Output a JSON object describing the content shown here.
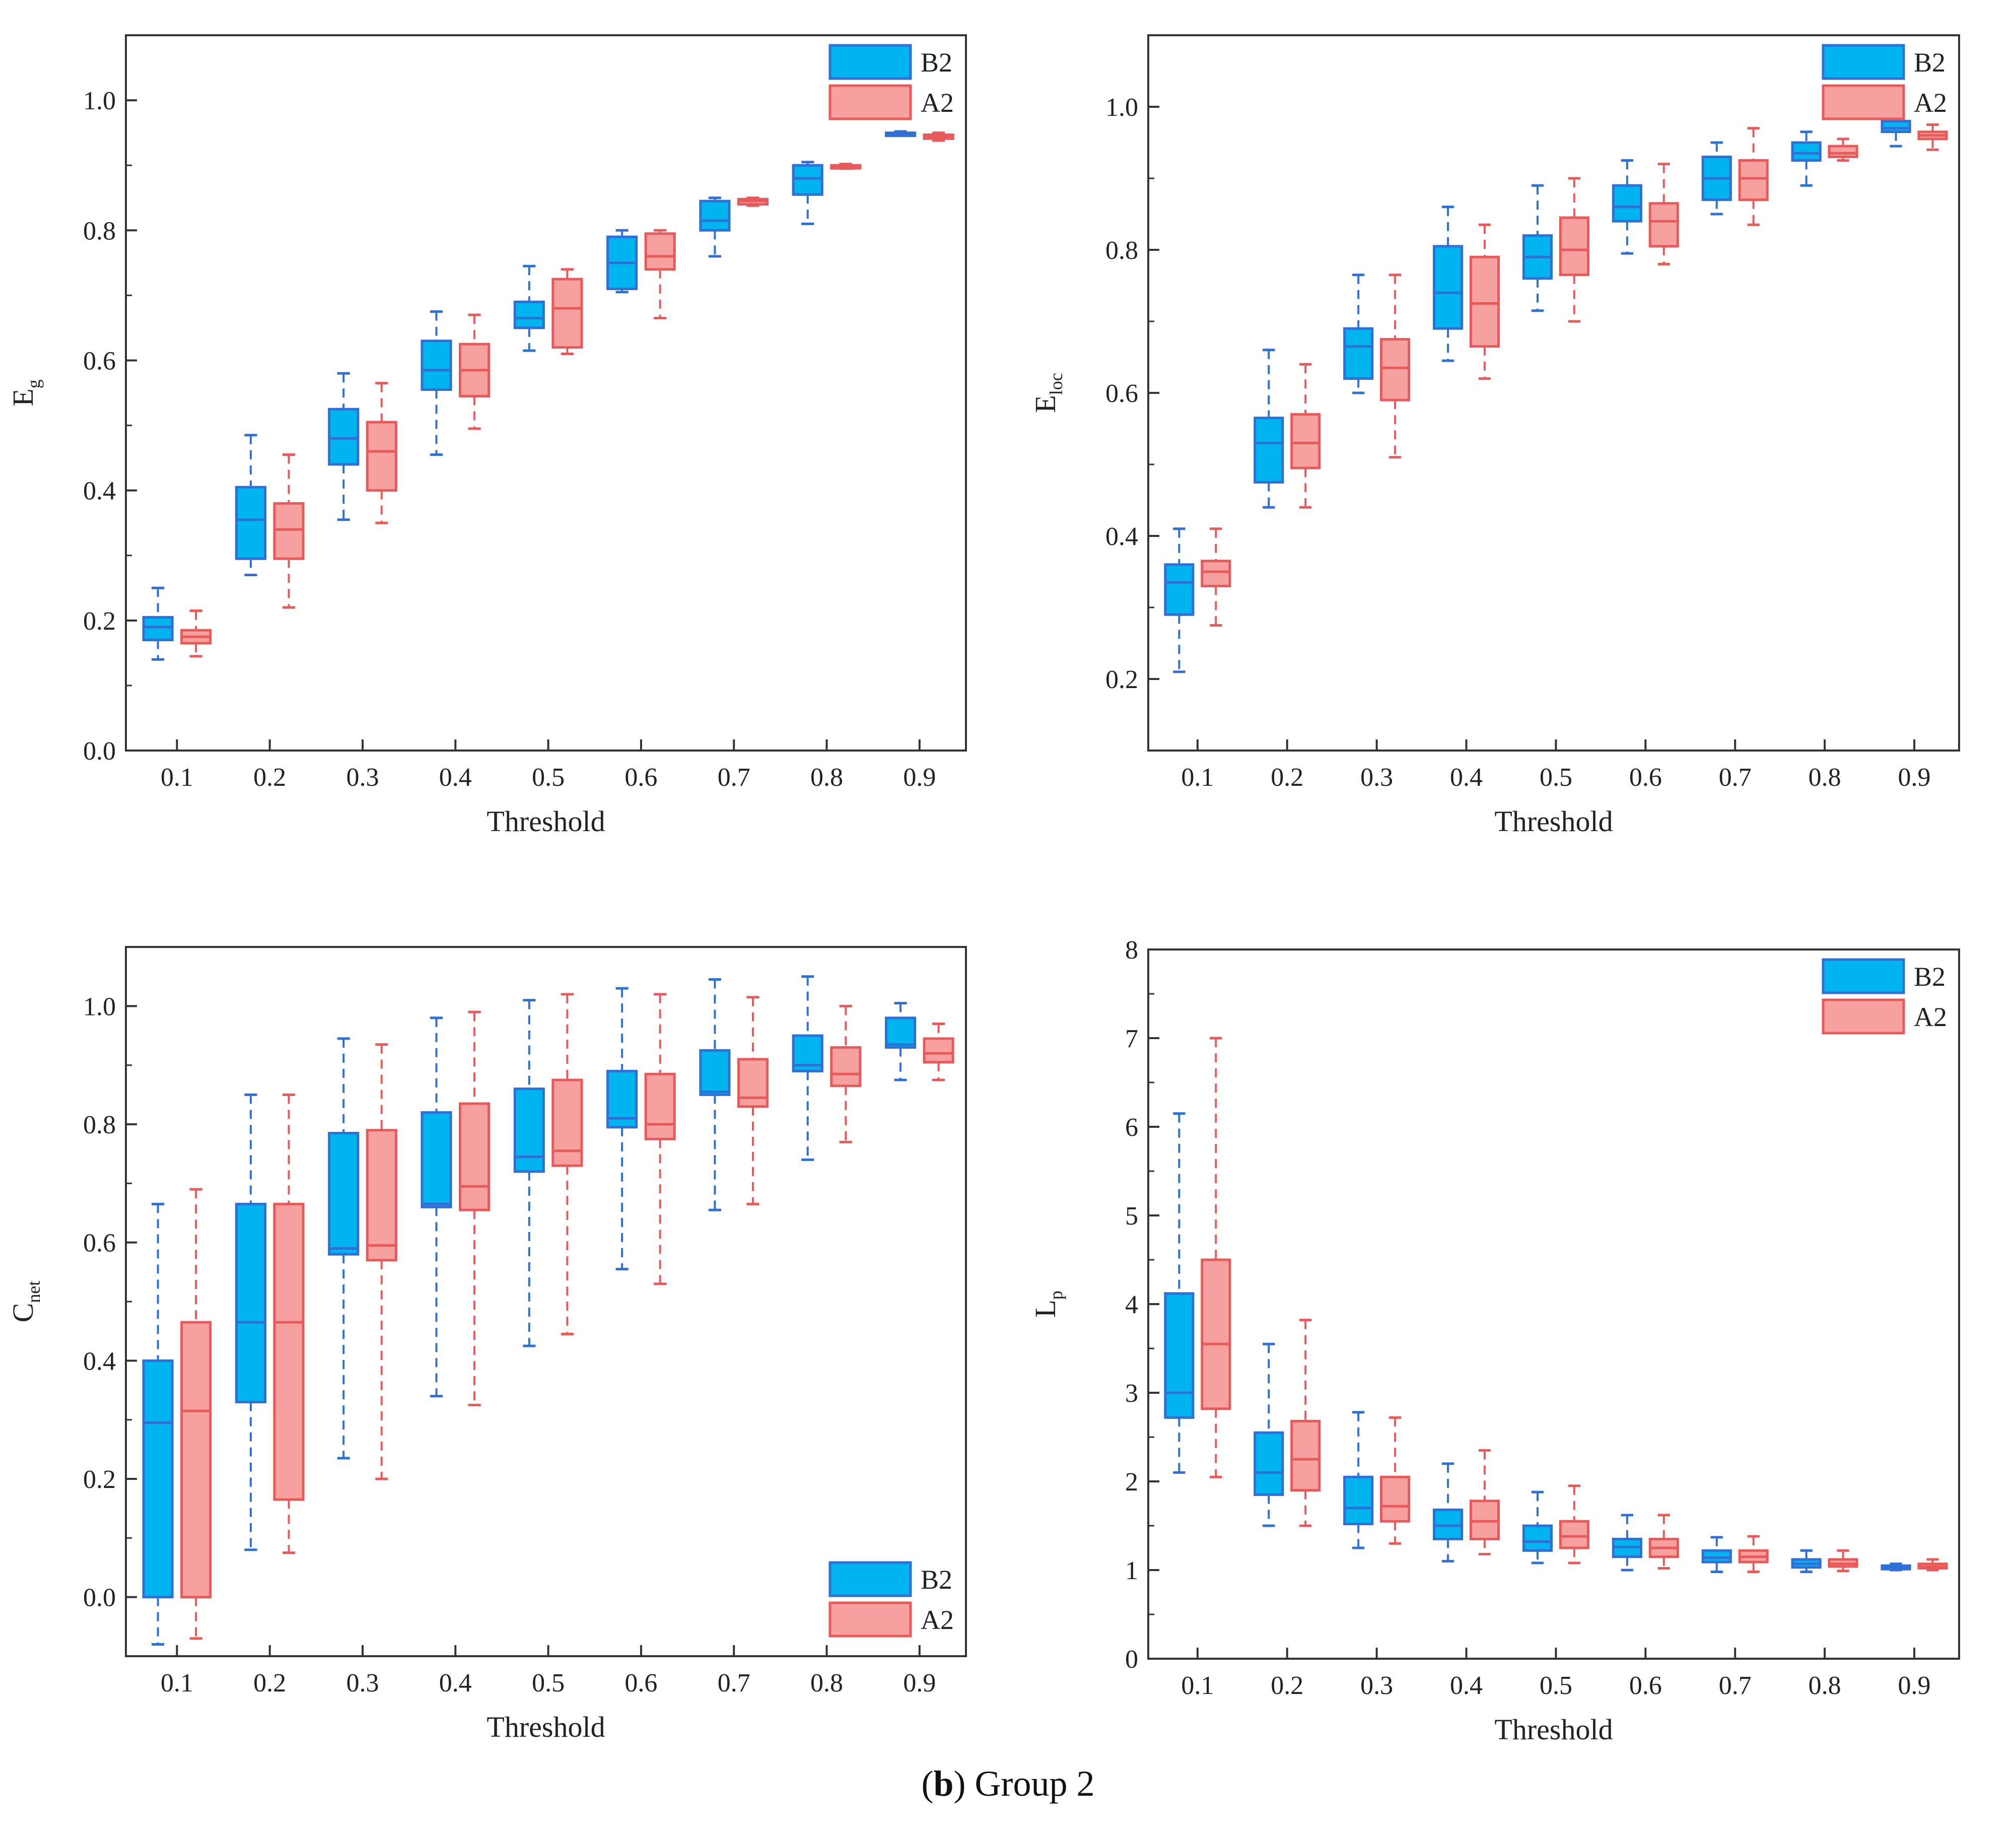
{
  "caption": {
    "open": "(",
    "letter": "b",
    "close": ")",
    "text": " Group 2"
  },
  "colors": {
    "B2_fill": "#00b4f0",
    "B2_stroke": "#2f6fd6",
    "A2_fill": "#f7a0a0",
    "A2_stroke": "#e85a5a"
  },
  "chart_data": [
    {
      "type": "box",
      "id": "eg",
      "title": "",
      "xlabel": "Threshold",
      "ylabel": "E",
      "ylabel_sub": "g",
      "categories": [
        "0.1",
        "0.2",
        "0.3",
        "0.4",
        "0.5",
        "0.6",
        "0.7",
        "0.8",
        "0.9"
      ],
      "ylim": [
        0,
        1.1
      ],
      "yticks": [
        0.0,
        0.2,
        0.4,
        0.6,
        0.8,
        1.0
      ],
      "ytick_labels": [
        "0.0",
        "0.2",
        "0.4",
        "0.6",
        "0.8",
        "1.0"
      ],
      "legend": {
        "position": "top-right",
        "entries": [
          "B2",
          "A2"
        ]
      },
      "series": [
        {
          "name": "B2",
          "boxes": [
            {
              "min": 0.14,
              "q1": 0.17,
              "median": 0.19,
              "q3": 0.205,
              "max": 0.25
            },
            {
              "min": 0.27,
              "q1": 0.295,
              "median": 0.355,
              "q3": 0.405,
              "max": 0.485
            },
            {
              "min": 0.355,
              "q1": 0.44,
              "median": 0.48,
              "q3": 0.525,
              "max": 0.58
            },
            {
              "min": 0.455,
              "q1": 0.555,
              "median": 0.585,
              "q3": 0.63,
              "max": 0.675
            },
            {
              "min": 0.615,
              "q1": 0.65,
              "median": 0.665,
              "q3": 0.69,
              "max": 0.745
            },
            {
              "min": 0.705,
              "q1": 0.71,
              "median": 0.75,
              "q3": 0.79,
              "max": 0.8
            },
            {
              "min": 0.76,
              "q1": 0.8,
              "median": 0.815,
              "q3": 0.845,
              "max": 0.85
            },
            {
              "min": 0.81,
              "q1": 0.855,
              "median": 0.88,
              "q3": 0.9,
              "max": 0.905
            },
            {
              "min": 0.946,
              "q1": 0.948,
              "median": 0.949,
              "q3": 0.95,
              "max": 0.952
            }
          ]
        },
        {
          "name": "A2",
          "boxes": [
            {
              "min": 0.145,
              "q1": 0.165,
              "median": 0.175,
              "q3": 0.185,
              "max": 0.215
            },
            {
              "min": 0.22,
              "q1": 0.295,
              "median": 0.34,
              "q3": 0.38,
              "max": 0.455
            },
            {
              "min": 0.35,
              "q1": 0.4,
              "median": 0.46,
              "q3": 0.505,
              "max": 0.565
            },
            {
              "min": 0.495,
              "q1": 0.545,
              "median": 0.585,
              "q3": 0.625,
              "max": 0.67
            },
            {
              "min": 0.61,
              "q1": 0.62,
              "median": 0.68,
              "q3": 0.725,
              "max": 0.74
            },
            {
              "min": 0.665,
              "q1": 0.74,
              "median": 0.76,
              "q3": 0.795,
              "max": 0.8
            },
            {
              "min": 0.838,
              "q1": 0.84,
              "median": 0.845,
              "q3": 0.848,
              "max": 0.85
            },
            {
              "min": 0.895,
              "q1": 0.897,
              "median": 0.899,
              "q3": 0.9,
              "max": 0.902
            },
            {
              "min": 0.938,
              "q1": 0.941,
              "median": 0.944,
              "q3": 0.947,
              "max": 0.95
            }
          ]
        }
      ]
    },
    {
      "type": "box",
      "id": "eloc",
      "title": "",
      "xlabel": "Threshold",
      "ylabel": "E",
      "ylabel_sub": "loc",
      "categories": [
        "0.1",
        "0.2",
        "0.3",
        "0.4",
        "0.5",
        "0.6",
        "0.7",
        "0.8",
        "0.9"
      ],
      "ylim": [
        0.1,
        1.1
      ],
      "yticks": [
        0.2,
        0.4,
        0.6,
        0.8,
        1.0
      ],
      "ytick_labels": [
        "0.2",
        "0.4",
        "0.6",
        "0.8",
        "1.0"
      ],
      "legend": {
        "position": "top-right",
        "entries": [
          "B2",
          "A2"
        ]
      },
      "series": [
        {
          "name": "B2",
          "boxes": [
            {
              "min": 0.21,
              "q1": 0.29,
              "median": 0.335,
              "q3": 0.36,
              "max": 0.41
            },
            {
              "min": 0.44,
              "q1": 0.475,
              "median": 0.53,
              "q3": 0.565,
              "max": 0.66
            },
            {
              "min": 0.6,
              "q1": 0.62,
              "median": 0.665,
              "q3": 0.69,
              "max": 0.765
            },
            {
              "min": 0.645,
              "q1": 0.69,
              "median": 0.74,
              "q3": 0.805,
              "max": 0.86
            },
            {
              "min": 0.715,
              "q1": 0.76,
              "median": 0.79,
              "q3": 0.82,
              "max": 0.89
            },
            {
              "min": 0.795,
              "q1": 0.84,
              "median": 0.86,
              "q3": 0.89,
              "max": 0.925
            },
            {
              "min": 0.85,
              "q1": 0.87,
              "median": 0.9,
              "q3": 0.93,
              "max": 0.95
            },
            {
              "min": 0.89,
              "q1": 0.925,
              "median": 0.935,
              "q3": 0.95,
              "max": 0.965
            },
            {
              "min": 0.945,
              "q1": 0.965,
              "median": 0.97,
              "q3": 0.98,
              "max": 0.99
            }
          ]
        },
        {
          "name": "A2",
          "boxes": [
            {
              "min": 0.275,
              "q1": 0.33,
              "median": 0.35,
              "q3": 0.365,
              "max": 0.41
            },
            {
              "min": 0.44,
              "q1": 0.495,
              "median": 0.53,
              "q3": 0.57,
              "max": 0.64
            },
            {
              "min": 0.51,
              "q1": 0.59,
              "median": 0.635,
              "q3": 0.675,
              "max": 0.765
            },
            {
              "min": 0.62,
              "q1": 0.665,
              "median": 0.725,
              "q3": 0.79,
              "max": 0.835
            },
            {
              "min": 0.7,
              "q1": 0.765,
              "median": 0.8,
              "q3": 0.845,
              "max": 0.9
            },
            {
              "min": 0.78,
              "q1": 0.805,
              "median": 0.84,
              "q3": 0.865,
              "max": 0.92
            },
            {
              "min": 0.835,
              "q1": 0.87,
              "median": 0.9,
              "q3": 0.925,
              "max": 0.97
            },
            {
              "min": 0.925,
              "q1": 0.93,
              "median": 0.935,
              "q3": 0.945,
              "max": 0.955
            },
            {
              "min": 0.94,
              "q1": 0.955,
              "median": 0.96,
              "q3": 0.965,
              "max": 0.975
            }
          ]
        }
      ]
    },
    {
      "type": "box",
      "id": "cnet",
      "title": "",
      "xlabel": "Threshold",
      "ylabel": "C",
      "ylabel_sub": "net",
      "categories": [
        "0.1",
        "0.2",
        "0.3",
        "0.4",
        "0.5",
        "0.6",
        "0.7",
        "0.8",
        "0.9"
      ],
      "ylim": [
        -0.1,
        1.1
      ],
      "yticks": [
        0.0,
        0.2,
        0.4,
        0.6,
        0.8,
        1.0
      ],
      "ytick_labels": [
        "0.0",
        "0.2",
        "0.4",
        "0.6",
        "0.8",
        "1.0"
      ],
      "legend": {
        "position": "bottom-right",
        "entries": [
          "B2",
          "A2"
        ]
      },
      "series": [
        {
          "name": "B2",
          "boxes": [
            {
              "min": -0.08,
              "q1": 0.0,
              "median": 0.295,
              "q3": 0.4,
              "max": 0.665
            },
            {
              "min": 0.08,
              "q1": 0.33,
              "median": 0.465,
              "q3": 0.665,
              "max": 0.85
            },
            {
              "min": 0.235,
              "q1": 0.58,
              "median": 0.59,
              "q3": 0.785,
              "max": 0.945
            },
            {
              "min": 0.34,
              "q1": 0.66,
              "median": 0.665,
              "q3": 0.82,
              "max": 0.98
            },
            {
              "min": 0.425,
              "q1": 0.72,
              "median": 0.745,
              "q3": 0.86,
              "max": 1.01
            },
            {
              "min": 0.555,
              "q1": 0.795,
              "median": 0.81,
              "q3": 0.89,
              "max": 1.03
            },
            {
              "min": 0.655,
              "q1": 0.85,
              "median": 0.855,
              "q3": 0.925,
              "max": 1.045
            },
            {
              "min": 0.74,
              "q1": 0.89,
              "median": 0.9,
              "q3": 0.95,
              "max": 1.05
            },
            {
              "min": 0.875,
              "q1": 0.93,
              "median": 0.935,
              "q3": 0.98,
              "max": 1.005
            }
          ]
        },
        {
          "name": "A2",
          "boxes": [
            {
              "min": -0.07,
              "q1": 0.0,
              "median": 0.315,
              "q3": 0.465,
              "max": 0.69
            },
            {
              "min": 0.075,
              "q1": 0.165,
              "median": 0.465,
              "q3": 0.665,
              "max": 0.85
            },
            {
              "min": 0.2,
              "q1": 0.57,
              "median": 0.595,
              "q3": 0.79,
              "max": 0.935
            },
            {
              "min": 0.325,
              "q1": 0.655,
              "median": 0.695,
              "q3": 0.835,
              "max": 0.99
            },
            {
              "min": 0.445,
              "q1": 0.73,
              "median": 0.755,
              "q3": 0.875,
              "max": 1.02
            },
            {
              "min": 0.53,
              "q1": 0.775,
              "median": 0.8,
              "q3": 0.885,
              "max": 1.02
            },
            {
              "min": 0.665,
              "q1": 0.83,
              "median": 0.845,
              "q3": 0.91,
              "max": 1.015
            },
            {
              "min": 0.77,
              "q1": 0.865,
              "median": 0.885,
              "q3": 0.93,
              "max": 1.0
            },
            {
              "min": 0.875,
              "q1": 0.905,
              "median": 0.92,
              "q3": 0.945,
              "max": 0.97
            }
          ]
        }
      ]
    },
    {
      "type": "box",
      "id": "lp",
      "title": "",
      "xlabel": "Threshold",
      "ylabel": "L",
      "ylabel_sub": "p",
      "categories": [
        "0.1",
        "0.2",
        "0.3",
        "0.4",
        "0.5",
        "0.6",
        "0.7",
        "0.8",
        "0.9"
      ],
      "ylim": [
        0,
        8
      ],
      "yticks": [
        0,
        1,
        2,
        3,
        4,
        5,
        6,
        7,
        8
      ],
      "ytick_labels": [
        "0",
        "1",
        "2",
        "3",
        "4",
        "5",
        "6",
        "7",
        "8"
      ],
      "legend": {
        "position": "top-right",
        "entries": [
          "B2",
          "A2"
        ]
      },
      "series": [
        {
          "name": "B2",
          "boxes": [
            {
              "min": 2.1,
              "q1": 2.72,
              "median": 3.0,
              "q3": 4.12,
              "max": 6.15
            },
            {
              "min": 1.5,
              "q1": 1.85,
              "median": 2.1,
              "q3": 2.55,
              "max": 3.55
            },
            {
              "min": 1.25,
              "q1": 1.52,
              "median": 1.7,
              "q3": 2.05,
              "max": 2.78
            },
            {
              "min": 1.1,
              "q1": 1.35,
              "median": 1.5,
              "q3": 1.68,
              "max": 2.2
            },
            {
              "min": 1.08,
              "q1": 1.22,
              "median": 1.32,
              "q3": 1.5,
              "max": 1.88
            },
            {
              "min": 1.0,
              "q1": 1.15,
              "median": 1.26,
              "q3": 1.35,
              "max": 1.62
            },
            {
              "min": 0.98,
              "q1": 1.09,
              "median": 1.14,
              "q3": 1.22,
              "max": 1.37
            },
            {
              "min": 0.98,
              "q1": 1.03,
              "median": 1.07,
              "q3": 1.12,
              "max": 1.22
            },
            {
              "min": 1.0,
              "q1": 1.01,
              "median": 1.03,
              "q3": 1.05,
              "max": 1.07
            }
          ]
        },
        {
          "name": "A2",
          "boxes": [
            {
              "min": 2.05,
              "q1": 2.82,
              "median": 3.55,
              "q3": 4.5,
              "max": 7.0
            },
            {
              "min": 1.5,
              "q1": 1.9,
              "median": 2.25,
              "q3": 2.68,
              "max": 3.82
            },
            {
              "min": 1.3,
              "q1": 1.55,
              "median": 1.72,
              "q3": 2.05,
              "max": 2.72
            },
            {
              "min": 1.18,
              "q1": 1.35,
              "median": 1.55,
              "q3": 1.78,
              "max": 2.35
            },
            {
              "min": 1.08,
              "q1": 1.25,
              "median": 1.38,
              "q3": 1.55,
              "max": 1.95
            },
            {
              "min": 1.02,
              "q1": 1.15,
              "median": 1.25,
              "q3": 1.35,
              "max": 1.62
            },
            {
              "min": 0.98,
              "q1": 1.09,
              "median": 1.15,
              "q3": 1.22,
              "max": 1.38
            },
            {
              "min": 0.99,
              "q1": 1.04,
              "median": 1.07,
              "q3": 1.12,
              "max": 1.22
            },
            {
              "min": 1.0,
              "q1": 1.02,
              "median": 1.04,
              "q3": 1.07,
              "max": 1.12
            }
          ]
        }
      ]
    }
  ]
}
